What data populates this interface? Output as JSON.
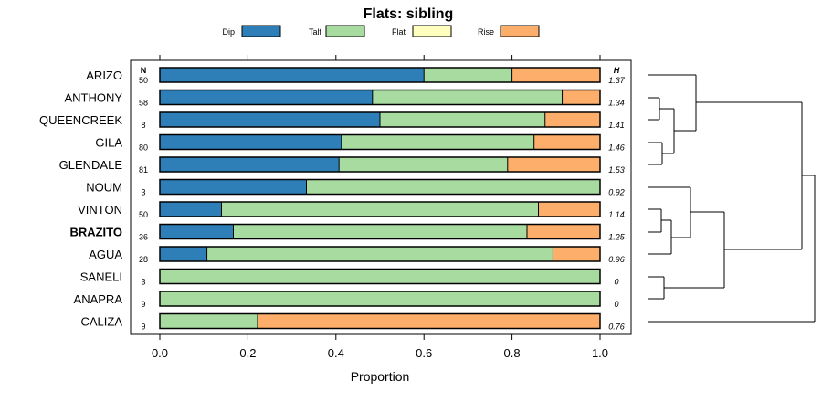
{
  "chart_data": {
    "type": "bar",
    "stacked": true,
    "orientation": "horizontal",
    "title": "Flats: sibling",
    "xlabel": "Proportion",
    "ylabel": "",
    "xlim": [
      0,
      1
    ],
    "x_ticks": [
      "0.0",
      "0.2",
      "0.4",
      "0.6",
      "0.8",
      "1.0"
    ],
    "n_header": "N",
    "h_header": "H",
    "legend_position": "top",
    "series": [
      {
        "name": "Dip",
        "color": "#2e7fb8"
      },
      {
        "name": "Talf",
        "color": "#a8dba0"
      },
      {
        "name": "Flat",
        "color": "#ffffbe"
      },
      {
        "name": "Rise",
        "color": "#fdae6a"
      }
    ],
    "rows": [
      {
        "label": "ARIZO",
        "bold": false,
        "n": "50",
        "h": "1.37",
        "values": [
          0.6,
          0.2,
          0.0,
          0.2
        ]
      },
      {
        "label": "ANTHONY",
        "bold": false,
        "n": "58",
        "h": "1.34",
        "values": [
          0.483,
          0.431,
          0.0,
          0.086
        ]
      },
      {
        "label": "QUEENCREEK",
        "bold": false,
        "n": "8",
        "h": "1.41",
        "values": [
          0.5,
          0.375,
          0.0,
          0.125
        ]
      },
      {
        "label": "GILA",
        "bold": false,
        "n": "80",
        "h": "1.46",
        "values": [
          0.4125,
          0.4375,
          0.0,
          0.15
        ]
      },
      {
        "label": "GLENDALE",
        "bold": false,
        "n": "81",
        "h": "1.53",
        "values": [
          0.407,
          0.383,
          0.0,
          0.21
        ]
      },
      {
        "label": "NOUM",
        "bold": false,
        "n": "3",
        "h": "0.92",
        "values": [
          0.333,
          0.667,
          0.0,
          0.0
        ]
      },
      {
        "label": "VINTON",
        "bold": false,
        "n": "50",
        "h": "1.14",
        "values": [
          0.14,
          0.72,
          0.0,
          0.14
        ]
      },
      {
        "label": "BRAZITO",
        "bold": true,
        "n": "36",
        "h": "1.25",
        "values": [
          0.167,
          0.667,
          0.0,
          0.166
        ]
      },
      {
        "label": "AGUA",
        "bold": false,
        "n": "28",
        "h": "0.96",
        "values": [
          0.107,
          0.786,
          0.0,
          0.107
        ]
      },
      {
        "label": "SANELI",
        "bold": false,
        "n": "3",
        "h": "0",
        "values": [
          0.0,
          1.0,
          0.0,
          0.0
        ]
      },
      {
        "label": "ANAPRA",
        "bold": false,
        "n": "9",
        "h": "0",
        "values": [
          0.0,
          1.0,
          0.0,
          0.0
        ]
      },
      {
        "label": "CALIZA",
        "bold": false,
        "n": "9",
        "h": "0.76",
        "values": [
          0.0,
          0.222,
          0.0,
          0.778
        ]
      }
    ]
  }
}
